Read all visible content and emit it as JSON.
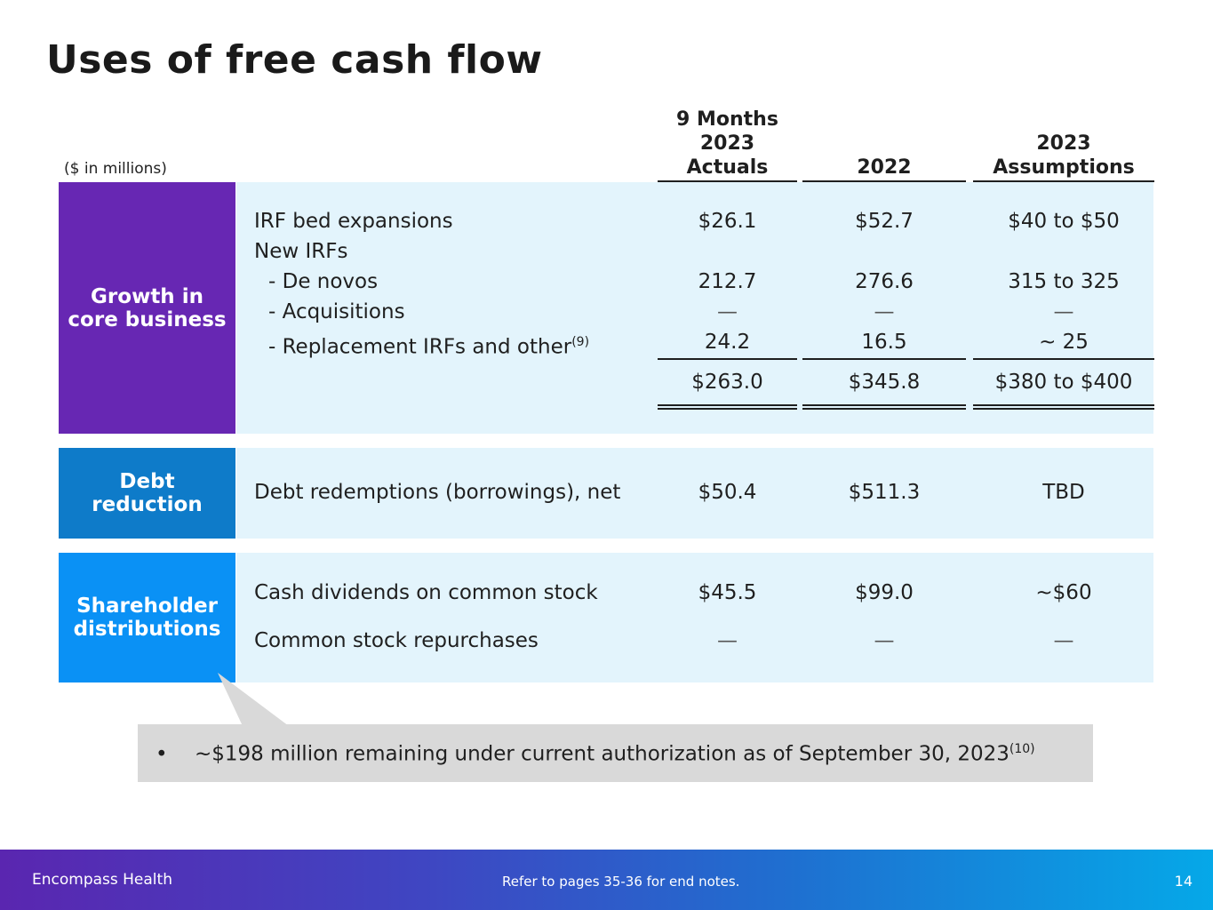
{
  "title": "Uses of free cash flow",
  "units_note": "($ in millions)",
  "columns": {
    "c1": [
      "9 Months",
      "2023",
      "Actuals"
    ],
    "c2": [
      "2022"
    ],
    "c3": [
      "2023",
      "Assumptions"
    ]
  },
  "sections": {
    "growth": {
      "label": [
        "Growth in",
        "core business"
      ],
      "color": "#6727b3",
      "rows": [
        {
          "label": "IRF bed expansions",
          "c1": "$26.1",
          "c2": "$52.7",
          "c3": "$40 to $50"
        },
        {
          "label": "New IRFs",
          "c1": "",
          "c2": "",
          "c3": ""
        },
        {
          "label": "- De novos",
          "c1": "212.7",
          "c2": "276.6",
          "c3": "315 to 325"
        },
        {
          "label": "- Acquisitions",
          "c1": "—",
          "c2": "—",
          "c3": "—"
        },
        {
          "label": "- Replacement IRFs and other",
          "note": "(9)",
          "c1": "24.2",
          "c2": "16.5",
          "c3": "~ 25"
        }
      ],
      "total": {
        "c1": "$263.0",
        "c2": "$345.8",
        "c3": "$380 to $400"
      }
    },
    "debt": {
      "label": [
        "Debt",
        "reduction"
      ],
      "color": "#0e7bc9",
      "rows": [
        {
          "label": "Debt redemptions (borrowings), net",
          "c1": "$50.4",
          "c2": "$511.3",
          "c3": "TBD"
        }
      ]
    },
    "shareholder": {
      "label": [
        "Shareholder",
        "distributions"
      ],
      "color": "#0a91f5",
      "rows": [
        {
          "label": "Cash dividends on common stock",
          "c1": "$45.5",
          "c2": "$99.0",
          "c3": "~$60"
        },
        {
          "label": "Common stock repurchases",
          "c1": "—",
          "c2": "—",
          "c3": "—"
        }
      ]
    }
  },
  "callout": {
    "bullet": "•",
    "text": "~$198 million remaining under current authorization as of September 30, 2023",
    "note": "(10)"
  },
  "footer": {
    "company": "Encompass Health",
    "notes": "Refer to pages 35-36 for end notes.",
    "page": "14"
  }
}
